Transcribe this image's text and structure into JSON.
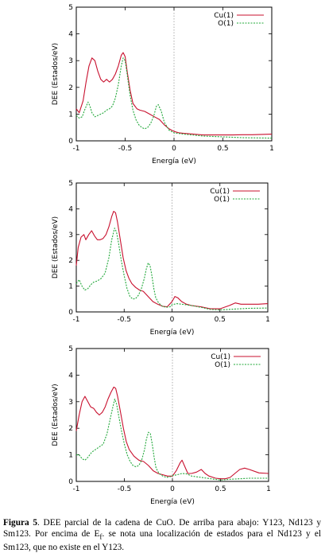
{
  "chart_data": [
    {
      "type": "line",
      "xlabel": "Energía (eV)",
      "ylabel": "DEE (Estados/eV)",
      "xlim": [
        -1,
        1
      ],
      "ylim": [
        0,
        5
      ],
      "xticks": [
        "-1",
        "-0.5",
        "0",
        "0.5",
        "1"
      ],
      "yticks": [
        "0",
        "1",
        "2",
        "3",
        "4",
        "5"
      ],
      "legend_position": "top-right",
      "fermi_line_x": 0,
      "series": [
        {
          "name": "Cu(1)",
          "color": "#c8102e",
          "dash": "solid",
          "x": [
            -1,
            -0.97,
            -0.93,
            -0.9,
            -0.87,
            -0.84,
            -0.81,
            -0.78,
            -0.75,
            -0.72,
            -0.69,
            -0.66,
            -0.63,
            -0.6,
            -0.57,
            -0.54,
            -0.52,
            -0.5,
            -0.48,
            -0.45,
            -0.42,
            -0.38,
            -0.35,
            -0.3,
            -0.25,
            -0.2,
            -0.15,
            -0.1,
            -0.05,
            0,
            0.05,
            0.1,
            0.2,
            0.3,
            0.4,
            0.5,
            0.6,
            0.7,
            0.8,
            0.9,
            1
          ],
          "y": [
            1.2,
            1.05,
            1.5,
            2.2,
            2.8,
            3.1,
            3.0,
            2.6,
            2.3,
            2.2,
            2.3,
            2.2,
            2.3,
            2.5,
            2.8,
            3.2,
            3.3,
            3.15,
            2.6,
            1.9,
            1.4,
            1.2,
            1.15,
            1.1,
            1.0,
            0.9,
            0.8,
            0.6,
            0.45,
            0.35,
            0.3,
            0.28,
            0.25,
            0.22,
            0.22,
            0.22,
            0.22,
            0.23,
            0.23,
            0.24,
            0.25
          ]
        },
        {
          "name": "O(1)",
          "color": "#22a83a",
          "dash": "dotted",
          "x": [
            -1,
            -0.97,
            -0.94,
            -0.91,
            -0.88,
            -0.86,
            -0.84,
            -0.81,
            -0.78,
            -0.75,
            -0.72,
            -0.69,
            -0.66,
            -0.63,
            -0.6,
            -0.57,
            -0.54,
            -0.52,
            -0.5,
            -0.48,
            -0.45,
            -0.42,
            -0.39,
            -0.36,
            -0.33,
            -0.3,
            -0.27,
            -0.24,
            -0.21,
            -0.18,
            -0.16,
            -0.13,
            -0.1,
            -0.05,
            0,
            0.1,
            0.3,
            0.5,
            0.7,
            1
          ],
          "y": [
            0.95,
            0.85,
            0.9,
            1.2,
            1.45,
            1.3,
            1.05,
            0.9,
            0.95,
            1.0,
            1.05,
            1.15,
            1.2,
            1.3,
            1.6,
            2.1,
            2.8,
            3.1,
            3.0,
            2.5,
            1.7,
            1.15,
            0.8,
            0.6,
            0.5,
            0.45,
            0.5,
            0.65,
            0.9,
            1.3,
            1.35,
            1.1,
            0.7,
            0.4,
            0.3,
            0.25,
            0.18,
            0.15,
            0.12,
            0.1
          ]
        }
      ]
    },
    {
      "type": "line",
      "xlabel": "Energía (eV)",
      "ylabel": "DEE (Estados/eV)",
      "xlim": [
        -1,
        1
      ],
      "ylim": [
        0,
        5
      ],
      "xticks": [
        "-1",
        "-0.5",
        "0",
        "0.5",
        "1"
      ],
      "yticks": [
        "0",
        "1",
        "2",
        "3",
        "4",
        "5"
      ],
      "legend_position": "top-right",
      "fermi_line_x": 0,
      "series": [
        {
          "name": "Cu(1)",
          "color": "#c8102e",
          "dash": "solid",
          "x": [
            -1,
            -0.98,
            -0.95,
            -0.92,
            -0.9,
            -0.87,
            -0.84,
            -0.81,
            -0.78,
            -0.75,
            -0.72,
            -0.69,
            -0.66,
            -0.63,
            -0.61,
            -0.59,
            -0.57,
            -0.54,
            -0.51,
            -0.48,
            -0.45,
            -0.42,
            -0.38,
            -0.34,
            -0.3,
            -0.25,
            -0.2,
            -0.15,
            -0.1,
            -0.05,
            0,
            0.03,
            0.06,
            0.1,
            0.15,
            0.2,
            0.3,
            0.4,
            0.5,
            0.6,
            0.66,
            0.72,
            0.8,
            0.9,
            1
          ],
          "y": [
            1.8,
            2.5,
            2.9,
            3.0,
            2.8,
            3.0,
            3.15,
            2.95,
            2.8,
            2.8,
            2.85,
            3.0,
            3.3,
            3.7,
            3.9,
            3.85,
            3.5,
            2.8,
            2.1,
            1.6,
            1.3,
            1.1,
            0.95,
            0.85,
            0.8,
            0.6,
            0.4,
            0.3,
            0.22,
            0.2,
            0.4,
            0.6,
            0.55,
            0.4,
            0.3,
            0.25,
            0.2,
            0.12,
            0.12,
            0.25,
            0.35,
            0.3,
            0.3,
            0.3,
            0.32
          ]
        },
        {
          "name": "O(1)",
          "color": "#22a83a",
          "dash": "dotted",
          "x": [
            -1,
            -0.97,
            -0.94,
            -0.91,
            -0.88,
            -0.85,
            -0.82,
            -0.78,
            -0.74,
            -0.7,
            -0.66,
            -0.63,
            -0.6,
            -0.58,
            -0.56,
            -0.53,
            -0.5,
            -0.47,
            -0.44,
            -0.41,
            -0.38,
            -0.35,
            -0.32,
            -0.29,
            -0.27,
            -0.25,
            -0.23,
            -0.21,
            -0.19,
            -0.17,
            -0.14,
            -0.1,
            -0.06,
            -0.02,
            0,
            0.05,
            0.1,
            0.2,
            0.3,
            0.4,
            0.5,
            0.6,
            0.7,
            0.8,
            1
          ],
          "y": [
            1.1,
            1.25,
            1.0,
            0.85,
            0.9,
            1.05,
            1.15,
            1.2,
            1.3,
            1.5,
            2.1,
            2.8,
            3.25,
            3.1,
            2.7,
            2.0,
            1.4,
            0.9,
            0.6,
            0.5,
            0.52,
            0.65,
            0.9,
            1.3,
            1.65,
            1.9,
            1.8,
            1.4,
            0.9,
            0.55,
            0.35,
            0.22,
            0.18,
            0.2,
            0.28,
            0.32,
            0.3,
            0.25,
            0.18,
            0.1,
            0.08,
            0.1,
            0.12,
            0.14,
            0.15
          ]
        }
      ]
    },
    {
      "type": "line",
      "xlabel": "Energía (eV)",
      "ylabel": "DEE (Estados/eV)",
      "xlim": [
        -1,
        1
      ],
      "ylim": [
        0,
        5
      ],
      "xticks": [
        "-1",
        "-0.5",
        "0",
        "0.5",
        "1"
      ],
      "yticks": [
        "0",
        "1",
        "2",
        "3",
        "4",
        "5"
      ],
      "legend_position": "top-right",
      "fermi_line_x": 0,
      "series": [
        {
          "name": "Cu(1)",
          "color": "#c8102e",
          "dash": "solid",
          "x": [
            -1,
            -0.97,
            -0.94,
            -0.91,
            -0.88,
            -0.85,
            -0.82,
            -0.79,
            -0.76,
            -0.73,
            -0.7,
            -0.67,
            -0.64,
            -0.61,
            -0.59,
            -0.57,
            -0.54,
            -0.51,
            -0.48,
            -0.45,
            -0.4,
            -0.35,
            -0.3,
            -0.25,
            -0.2,
            -0.15,
            -0.1,
            -0.05,
            0,
            0.04,
            0.08,
            0.1,
            0.13,
            0.16,
            0.2,
            0.25,
            0.3,
            0.34,
            0.38,
            0.45,
            0.5,
            0.55,
            0.6,
            0.65,
            0.7,
            0.75,
            0.8,
            0.9,
            1
          ],
          "y": [
            1.9,
            2.5,
            3.0,
            3.2,
            3.0,
            2.8,
            2.75,
            2.6,
            2.5,
            2.6,
            2.8,
            3.1,
            3.35,
            3.55,
            3.5,
            3.2,
            2.6,
            2.0,
            1.5,
            1.2,
            0.95,
            0.8,
            0.75,
            0.6,
            0.4,
            0.3,
            0.25,
            0.2,
            0.2,
            0.4,
            0.7,
            0.8,
            0.55,
            0.3,
            0.3,
            0.35,
            0.45,
            0.3,
            0.2,
            0.12,
            0.1,
            0.1,
            0.15,
            0.3,
            0.45,
            0.5,
            0.45,
            0.32,
            0.3
          ]
        },
        {
          "name": "O(1)",
          "color": "#22a83a",
          "dash": "dotted",
          "x": [
            -1,
            -0.97,
            -0.94,
            -0.91,
            -0.88,
            -0.84,
            -0.8,
            -0.76,
            -0.72,
            -0.68,
            -0.65,
            -0.62,
            -0.6,
            -0.58,
            -0.56,
            -0.53,
            -0.5,
            -0.47,
            -0.44,
            -0.41,
            -0.38,
            -0.35,
            -0.32,
            -0.29,
            -0.27,
            -0.25,
            -0.23,
            -0.21,
            -0.19,
            -0.17,
            -0.14,
            -0.1,
            -0.06,
            -0.02,
            0,
            0.05,
            0.1,
            0.15,
            0.2,
            0.3,
            0.4,
            0.5,
            0.6,
            0.7,
            0.8,
            1
          ],
          "y": [
            1.0,
            1.0,
            0.85,
            0.8,
            0.9,
            1.1,
            1.2,
            1.3,
            1.4,
            1.8,
            2.3,
            2.8,
            3.1,
            2.9,
            2.5,
            1.9,
            1.4,
            1.0,
            0.75,
            0.6,
            0.55,
            0.6,
            0.8,
            1.2,
            1.6,
            1.85,
            1.8,
            1.4,
            0.9,
            0.5,
            0.3,
            0.2,
            0.15,
            0.18,
            0.22,
            0.25,
            0.3,
            0.28,
            0.2,
            0.15,
            0.1,
            0.05,
            0.08,
            0.1,
            0.12,
            0.12
          ]
        }
      ]
    }
  ],
  "caption": {
    "label": "Figura 5",
    "text": ". DEE parcial de la cadena de CuO. De arriba para abajo: Y123, Nd123 y Sm123. Por encima de E",
    "subscript": "f",
    "text_end": ". se nota una localización de estados para el Nd123 y el Sm123, que no existe en el Y123."
  }
}
